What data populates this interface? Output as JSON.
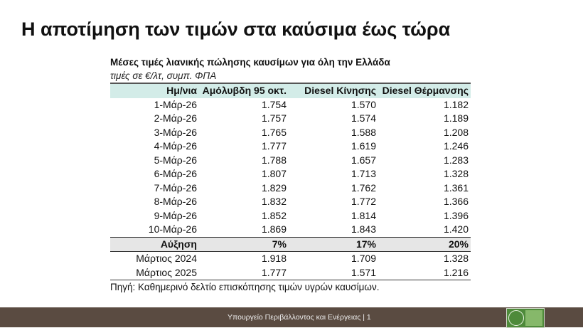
{
  "title": "Η αποτίμηση των τιμών στα καύσιμα έως τώρα",
  "table_title": "Μέσες τιμές λιανικής πώλησης καυσίμων για όλη την Ελλάδα",
  "table_subtitle": "τιμές σε €/λτ, συμπ. ΦΠΑ",
  "headers": [
    "Ημ/νια",
    "Αμόλυβδη 95 οκτ.",
    "Diesel Κίνησης",
    "Diesel Θέρμανσης"
  ],
  "rows": [
    [
      "1-Μάρ-26",
      "1.754",
      "1.570",
      "1.182"
    ],
    [
      "2-Μάρ-26",
      "1.757",
      "1.574",
      "1.189"
    ],
    [
      "3-Μάρ-26",
      "1.765",
      "1.588",
      "1.208"
    ],
    [
      "4-Μάρ-26",
      "1.777",
      "1.619",
      "1.246"
    ],
    [
      "5-Μάρ-26",
      "1.788",
      "1.657",
      "1.283"
    ],
    [
      "6-Μάρ-26",
      "1.807",
      "1.713",
      "1.328"
    ],
    [
      "7-Μάρ-26",
      "1.829",
      "1.762",
      "1.361"
    ],
    [
      "8-Μάρ-26",
      "1.832",
      "1.772",
      "1.366"
    ],
    [
      "9-Μάρ-26",
      "1.852",
      "1.814",
      "1.396"
    ],
    [
      "10-Μάρ-26",
      "1.869",
      "1.843",
      "1.420"
    ]
  ],
  "increase_row": [
    "Αύξηση",
    "7%",
    "17%",
    "20%"
  ],
  "comparison_rows": [
    [
      "Μάρτιος 2024",
      "1.918",
      "1.709",
      "1.328"
    ],
    [
      "Μάρτιος 2025",
      "1.777",
      "1.571",
      "1.216"
    ]
  ],
  "source": "Πηγή: Καθημερινό δελτίο επισκόπησης τιμών υγρών καυσίμων.",
  "footer": "Υπουργείο Περιβάλλοντος και Ενέργειας | 1"
}
